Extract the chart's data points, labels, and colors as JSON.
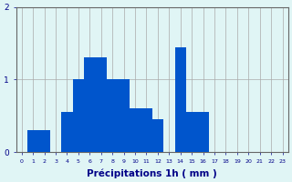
{
  "categories": [
    0,
    1,
    2,
    3,
    4,
    5,
    6,
    7,
    8,
    9,
    10,
    11,
    12,
    13,
    14,
    15,
    16,
    17,
    18,
    19,
    20,
    21,
    22,
    23
  ],
  "values": [
    0.0,
    0.3,
    0.3,
    0.0,
    0.55,
    1.0,
    1.3,
    1.3,
    1.0,
    1.0,
    0.6,
    0.6,
    0.45,
    0.0,
    1.45,
    0.55,
    0.55,
    0.0,
    0.0,
    0.0,
    0.0,
    0.0,
    0.0,
    0.0
  ],
  "bar_color": "#0055cc",
  "background_color": "#e0f5f5",
  "grid_color": "#aaaaaa",
  "axis_color": "#666666",
  "text_color": "#000088",
  "xlabel": "Précipitations 1h ( mm )",
  "ylim": [
    0,
    2
  ],
  "yticks": [
    0,
    1,
    2
  ],
  "label_fontsize": 7.5
}
